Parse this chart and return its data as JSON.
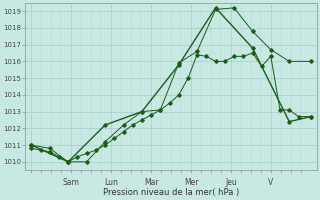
{
  "xlabel": "Pression niveau de la mer( hPa )",
  "bg_color": "#c8e8e4",
  "grid_color_major": "#a8ccc8",
  "grid_color_minor": "#b8d8d4",
  "line_color": "#1a5c1a",
  "ylim": [
    1009.5,
    1019.5
  ],
  "yticks": [
    1010,
    1011,
    1012,
    1013,
    1014,
    1015,
    1016,
    1017,
    1018,
    1019
  ],
  "xlim": [
    -0.3,
    13.3
  ],
  "day_labels": [
    "",
    "Sam",
    "",
    "Lun",
    "",
    "Mar",
    "",
    "Mer",
    "",
    "Jeu",
    "",
    "V"
  ],
  "day_positions": [
    0,
    1.857,
    3.714,
    5.571,
    7.428,
    9.285,
    11.142
  ],
  "day_tick_labels": [
    "",
    "Sam",
    "Lun",
    "Mar",
    "Mer",
    "Jeu",
    "V"
  ],
  "series1_x": [
    0.0,
    0.43,
    0.86,
    1.29,
    1.71,
    2.14,
    2.57,
    3.0,
    3.43,
    3.86,
    4.29,
    4.71,
    5.14,
    5.57,
    6.0,
    6.43,
    6.86,
    7.29,
    7.71,
    8.14,
    8.57,
    9.0,
    9.43,
    9.86,
    10.29,
    10.71,
    11.14,
    11.57,
    12.0,
    12.43,
    13.0
  ],
  "series1_y": [
    1010.8,
    1010.7,
    1010.6,
    1010.3,
    1010.0,
    1010.3,
    1010.5,
    1010.7,
    1011.0,
    1011.4,
    1011.8,
    1012.2,
    1012.5,
    1012.8,
    1013.1,
    1013.5,
    1014.0,
    1015.0,
    1016.4,
    1016.3,
    1016.0,
    1016.0,
    1016.3,
    1016.3,
    1016.5,
    1015.7,
    1016.3,
    1013.1,
    1013.1,
    1012.7,
    1012.7
  ],
  "series2_x": [
    0.0,
    0.86,
    1.71,
    2.57,
    3.43,
    4.29,
    5.14,
    6.0,
    6.86,
    7.71,
    8.57,
    9.43,
    10.29,
    11.14,
    12.0,
    13.0
  ],
  "series2_y": [
    1011.0,
    1010.8,
    1010.0,
    1010.0,
    1011.2,
    1012.2,
    1013.0,
    1013.1,
    1015.9,
    1016.6,
    1019.1,
    1019.2,
    1017.8,
    1016.7,
    1016.0,
    1016.0
  ],
  "series3_x": [
    0.0,
    1.71,
    3.43,
    5.14,
    6.86,
    8.57,
    10.29,
    12.0,
    13.0
  ],
  "series3_y": [
    1011.0,
    1010.0,
    1012.2,
    1013.0,
    1015.8,
    1019.2,
    1016.8,
    1012.4,
    1012.7
  ]
}
